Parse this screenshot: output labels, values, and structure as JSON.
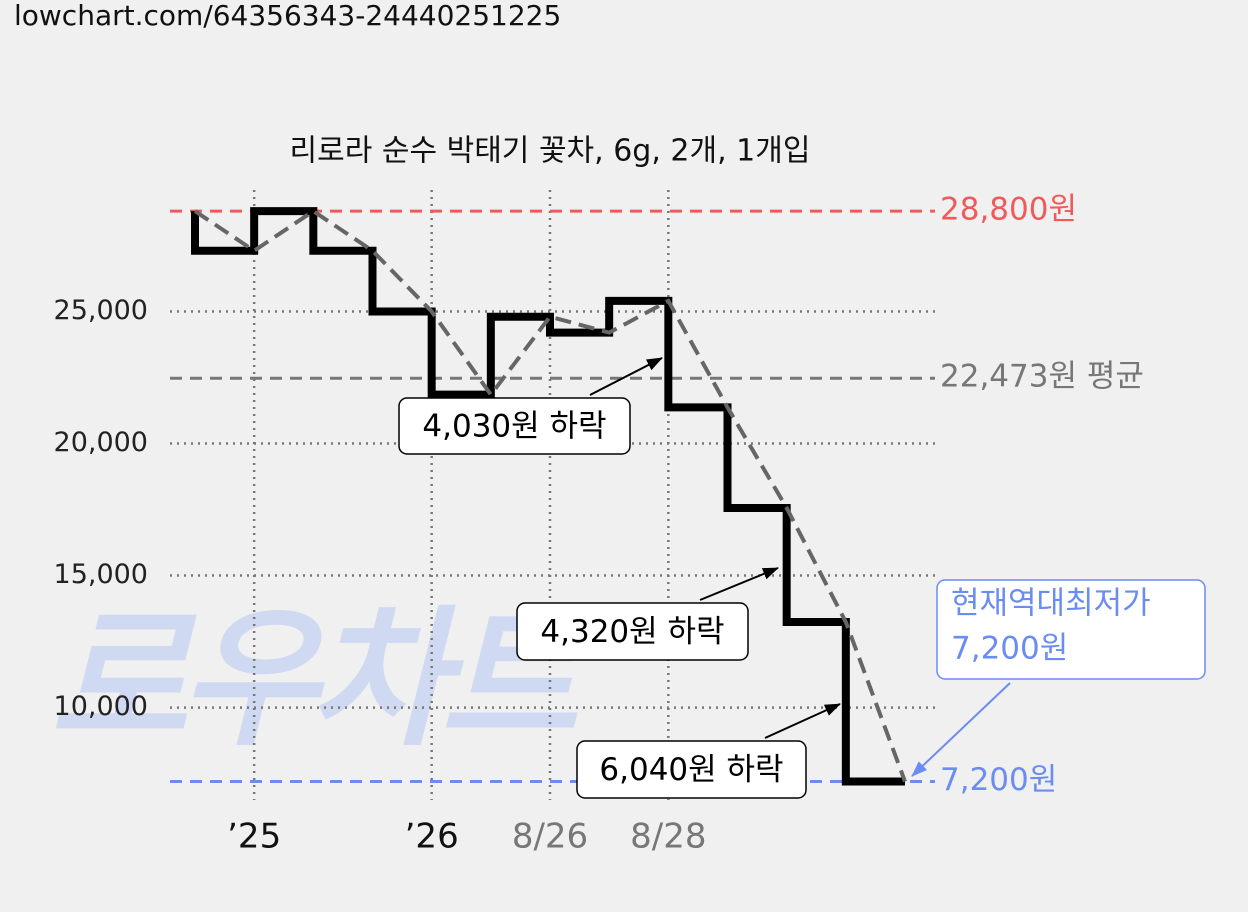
{
  "url": "lowchart.com/64356343-24440251225",
  "watermark": "로우차트",
  "chart_data": {
    "type": "line",
    "title": "리로라 순수 박태기 꽃차, 6g, 2개, 1개입",
    "categories": [
      null,
      "’25",
      null,
      null,
      "’26",
      null,
      "8/26",
      null,
      "8/28",
      null,
      null,
      null,
      null
    ],
    "category_colors": [
      null,
      "#111111",
      null,
      null,
      "#111111",
      null,
      "#777777",
      null,
      "#777777",
      null,
      null,
      null,
      null
    ],
    "values": [
      28800,
      27300,
      28800,
      27300,
      25000,
      21850,
      24800,
      24200,
      25400,
      21370,
      17560,
      13240,
      7200
    ],
    "step_color": "#000000",
    "trend_color": "#666666",
    "ylim": [
      6500,
      29600
    ],
    "yticks": [
      {
        "value": 10000,
        "label": "10,000"
      },
      {
        "value": 15000,
        "label": "15,000"
      },
      {
        "value": 20000,
        "label": "20,000"
      },
      {
        "value": 25000,
        "label": "25,000"
      }
    ],
    "grid": true,
    "reference_lines": [
      {
        "value": 28800,
        "label": "28,800원",
        "color": "#f05a5a"
      },
      {
        "value": 22473,
        "label": "22,473원 평균",
        "color": "#777777"
      },
      {
        "value": 7200,
        "label": "7,200원",
        "color": "#6b8cf0"
      }
    ],
    "annotations": [
      {
        "lines": [
          "4,030원 하락"
        ]
      },
      {
        "lines": [
          "4,320원 하락"
        ]
      },
      {
        "lines": [
          "6,040원 하락"
        ]
      },
      {
        "lines": [
          "현재역대최저가",
          "7,200원"
        ],
        "color": "#6b8cf0"
      }
    ]
  }
}
